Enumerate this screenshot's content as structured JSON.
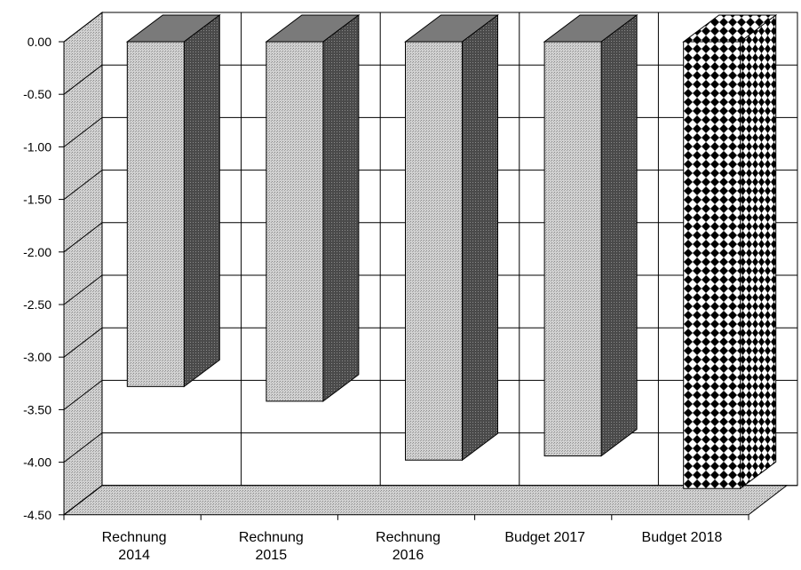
{
  "chart_data": {
    "type": "bar",
    "style": "3d",
    "title": "",
    "xlabel": "",
    "ylabel": "",
    "ylim": [
      -4.5,
      0
    ],
    "ytick_step": 0.5,
    "ytick_labels": [
      "0.00",
      "-0.50",
      "-1.00",
      "-1.50",
      "-2.00",
      "-2.50",
      "-3.00",
      "-3.50",
      "-4.00",
      "-4.50"
    ],
    "grid": true,
    "legend": "none",
    "categories": [
      [
        "Rechnung",
        "2014"
      ],
      [
        "Rechnung",
        "2015"
      ],
      [
        "Rechnung",
        "2016"
      ],
      [
        "Budget 2017"
      ],
      [
        "Budget 2018"
      ]
    ],
    "values": [
      -3.28,
      -3.42,
      -3.98,
      -3.94,
      -4.25
    ],
    "bar_fills": [
      "solid",
      "solid",
      "solid",
      "solid",
      "checker"
    ],
    "colors": {
      "bar_front": "#c4c4c4",
      "bar_side": "#4a4a4a",
      "bar_top": "#7a7a7a",
      "wall": "#bdbdbd",
      "floor": "#c8c8c8",
      "grid": "#000000"
    }
  }
}
